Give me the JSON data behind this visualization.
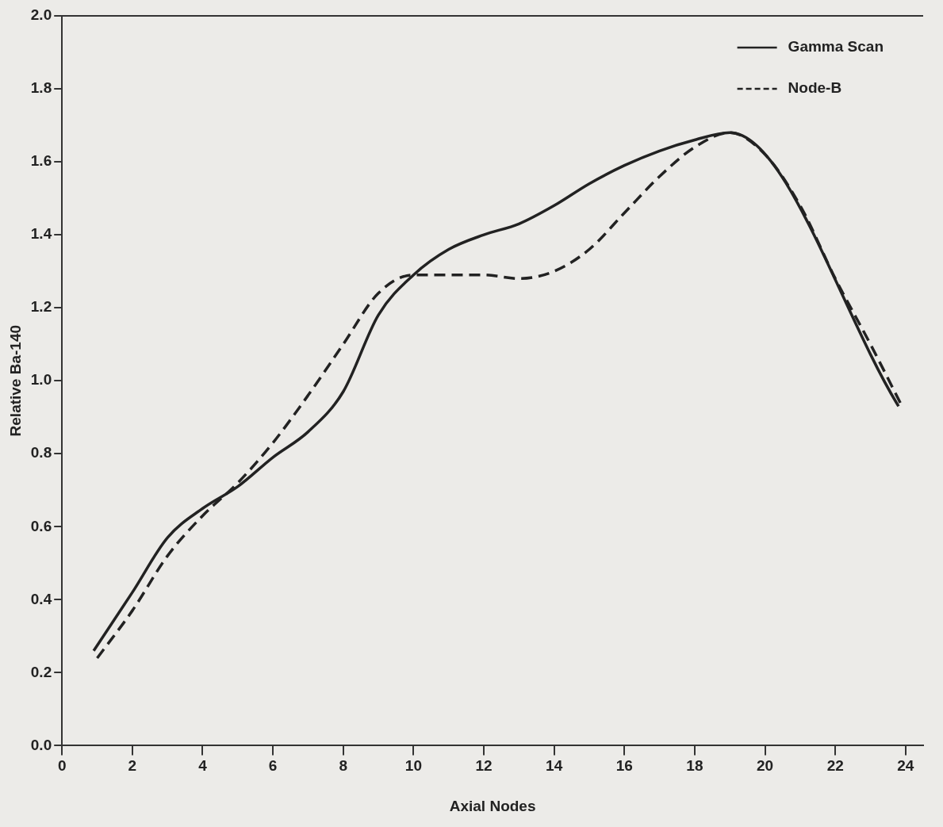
{
  "chart_data": {
    "type": "line",
    "xlabel": "Axial Nodes",
    "ylabel": "Relative Ba-140",
    "xlim": [
      0,
      24.5
    ],
    "xticks": [
      0,
      2,
      4,
      6,
      8,
      10,
      12,
      14,
      16,
      18,
      20,
      22,
      24
    ],
    "ylim": [
      0,
      2
    ],
    "yticks": [
      {
        "value": 0,
        "label": "0.0"
      },
      {
        "value": 0.2,
        "label": "0.2"
      },
      {
        "value": 0.4,
        "label": "0.4"
      },
      {
        "value": 0.6,
        "label": "0.6"
      },
      {
        "value": 0.8,
        "label": "0.8"
      },
      {
        "value": 1,
        "label": "1.0"
      },
      {
        "value": 1.2,
        "label": "1.2"
      },
      {
        "value": 1.4,
        "label": "1.4"
      },
      {
        "value": 1.6,
        "label": "1.6"
      },
      {
        "value": 1.8,
        "label": "1.8"
      },
      {
        "value": 2,
        "label": "2.0"
      }
    ],
    "grid": false,
    "legend": "top right",
    "marker": "none",
    "series": [
      {
        "name": "Gamma Scan",
        "color": "#222222",
        "line_style": "solid",
        "x": [
          0.9,
          2,
          3,
          4,
          5,
          6,
          7,
          8,
          9,
          10,
          11,
          12,
          13,
          14,
          15,
          16,
          17,
          18,
          19,
          23.8
        ],
        "values": [
          0.26,
          0.42,
          0.57,
          0.65,
          0.71,
          0.79,
          0.86,
          0.97,
          1.18,
          1.29,
          1.36,
          1.4,
          1.43,
          1.48,
          1.54,
          1.59,
          1.63,
          1.66,
          1.68,
          0.93
        ]
      },
      {
        "name": "Node-B",
        "color": "#222222",
        "line_style": "dashed",
        "x": [
          1,
          2,
          3,
          4,
          5,
          6,
          7,
          8,
          9,
          10,
          11,
          12,
          13,
          14,
          15,
          16,
          17,
          18,
          19,
          20,
          21,
          22,
          23,
          23.9
        ],
        "values": [
          0.24,
          0.37,
          0.52,
          0.63,
          0.72,
          0.83,
          0.96,
          1.1,
          1.24,
          1.29,
          1.29,
          1.29,
          1.28,
          1.3,
          1.36,
          1.46,
          1.56,
          1.64,
          1.68,
          1.62,
          1.48,
          1.28,
          1.1,
          0.93
        ]
      }
    ]
  }
}
